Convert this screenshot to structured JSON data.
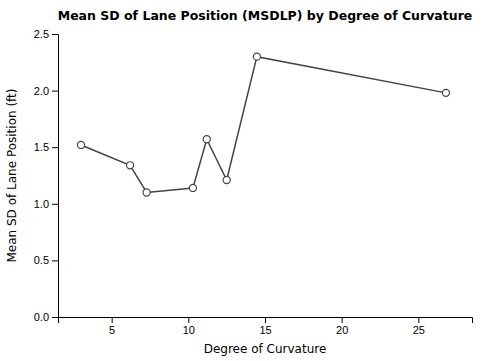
{
  "chart_data": {
    "type": "line",
    "title": "Mean SD of Lane Position (MSDLP) by Degree of Curvature",
    "xlabel": "Degree of Curvature",
    "ylabel": "Mean SD of Lane Position (ft)",
    "x": [
      3.0,
      6.2,
      7.28,
      10.3,
      11.2,
      12.5,
      14.47,
      26.8
    ],
    "values": [
      1.52,
      1.34,
      1.1,
      1.14,
      1.57,
      1.21,
      2.3,
      1.98
    ],
    "color": "#444444",
    "marker": "circle",
    "xlim": [
      1.5,
      28.5
    ],
    "ylim": [
      0.0,
      2.5
    ],
    "xticks": [
      5,
      10,
      15,
      20,
      25
    ],
    "yticks": [
      {
        "value": 0.0,
        "label": "0.0"
      },
      0.5,
      {
        "value": 1.0,
        "label": "1.0"
      },
      1.5,
      {
        "value": 2.0,
        "label": "2.0"
      },
      2.5
    ],
    "grid": false
  }
}
